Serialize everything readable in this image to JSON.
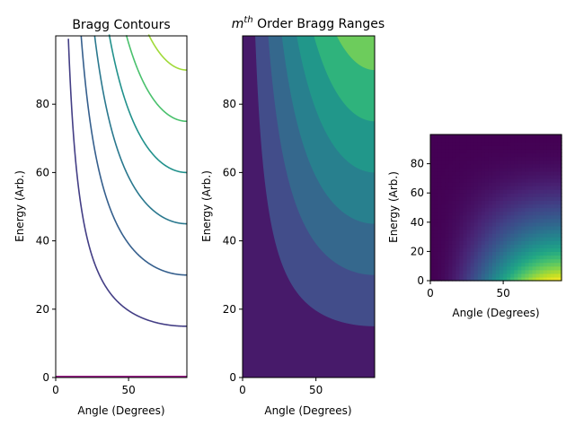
{
  "chart_data": [
    {
      "type": "line",
      "title": "Bragg Contours",
      "xlabel": "Angle (Degrees)",
      "ylabel": "Energy (Arb.)",
      "xlim": [
        0,
        90
      ],
      "ylim": [
        0,
        100
      ],
      "xticks": [
        0,
        50
      ],
      "yticks": [
        0,
        20,
        40,
        60,
        80
      ],
      "curve_formula": "E = level / sin(angle)",
      "series": [
        {
          "level": 0,
          "color": "#9b1f89"
        },
        {
          "level": 15,
          "color": "#433e85"
        },
        {
          "level": 30,
          "color": "#355f8d"
        },
        {
          "level": 45,
          "color": "#2a788e"
        },
        {
          "level": 60,
          "color": "#21918c"
        },
        {
          "level": 75,
          "color": "#4ac16d"
        },
        {
          "level": 90,
          "color": "#a0da39"
        }
      ],
      "grid": false
    },
    {
      "type": "area",
      "title_base": "m",
      "title_sup": "th",
      "title_rest": " Order Bragg Ranges",
      "xlabel": "Angle (Degrees)",
      "ylabel": "Energy (Arb.)",
      "xlim": [
        0,
        90
      ],
      "ylim": [
        0,
        100
      ],
      "xticks": [
        0,
        50
      ],
      "yticks": [
        0,
        20,
        40,
        60,
        80
      ],
      "band_boundaries": [
        15,
        30,
        45,
        60,
        75,
        90
      ],
      "band_colors": [
        "#471a6a",
        "#424d8a",
        "#35688d",
        "#28808e",
        "#21978a",
        "#2fb37c",
        "#6dcc5c",
        "#d3e12c"
      ],
      "grid": false
    },
    {
      "type": "heatmap",
      "xlabel": "Angle (Degrees)",
      "ylabel": "Energy (Arb.)",
      "xlim": [
        0,
        90
      ],
      "ylim": [
        0,
        100
      ],
      "xticks": [
        0,
        50
      ],
      "yticks": [
        0,
        20,
        40,
        60,
        80
      ],
      "colormap": "viridis",
      "grid": false
    }
  ]
}
